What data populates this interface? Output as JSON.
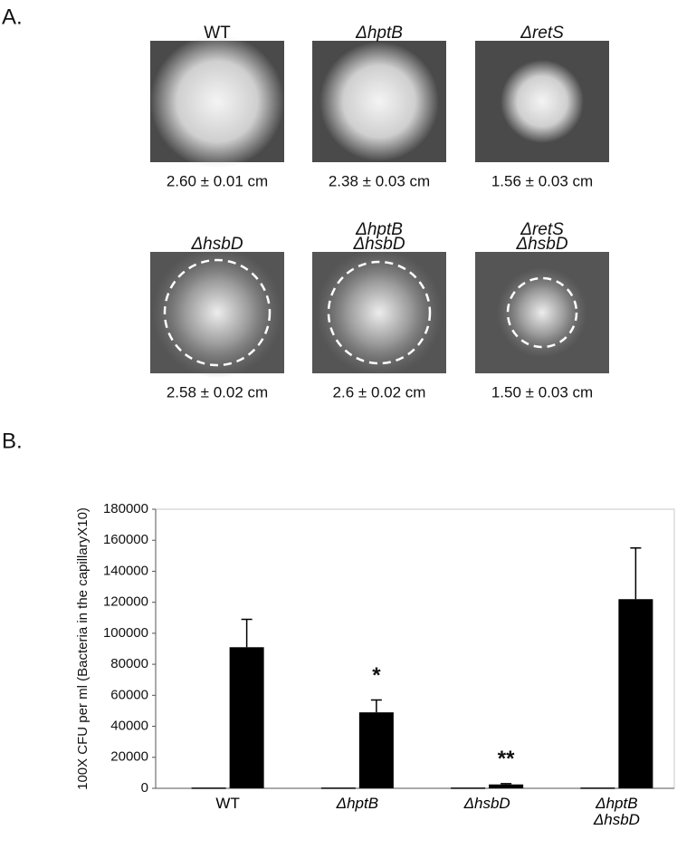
{
  "panel_a": {
    "label": "A.",
    "strains": [
      {
        "name_lines": [
          "WT"
        ],
        "measurement": "2.60 ± 0.01 cm"
      },
      {
        "name_lines": [
          "ΔhptB"
        ],
        "measurement": "2.38 ± 0.03 cm"
      },
      {
        "name_lines": [
          "ΔretS"
        ],
        "measurement": "1.56 ± 0.03 cm"
      },
      {
        "name_lines": [
          "ΔhsbD"
        ],
        "measurement": "2.58 ± 0.02 cm"
      },
      {
        "name_lines": [
          "ΔhptB",
          "ΔhsbD"
        ],
        "measurement": "2.6 ± 0.02 cm"
      },
      {
        "name_lines": [
          "ΔretS",
          "ΔhsbD"
        ],
        "measurement": "1.50 ± 0.03 cm"
      }
    ]
  },
  "chart_data": {
    "type": "bar",
    "panel_label": "B.",
    "y_label": "100X CFU per ml (Bacteria in the capillaryX10)",
    "categories": [
      "WT",
      "ΔhptB",
      "ΔhsbD",
      "ΔhptB ΔhsbD"
    ],
    "series": [
      {
        "color": "#000000",
        "values": [
          500,
          500,
          500,
          500
        ]
      },
      {
        "color": "#000000",
        "values": [
          91000,
          49000,
          2500,
          122000
        ],
        "errors": [
          18000,
          8000,
          500,
          33000
        ]
      }
    ],
    "significance": [
      null,
      "*",
      "**",
      null
    ],
    "ylim": [
      0,
      180000
    ],
    "yticks": [
      0,
      20000,
      40000,
      60000,
      80000,
      100000,
      120000,
      140000,
      160000,
      180000
    ],
    "grid": false
  }
}
